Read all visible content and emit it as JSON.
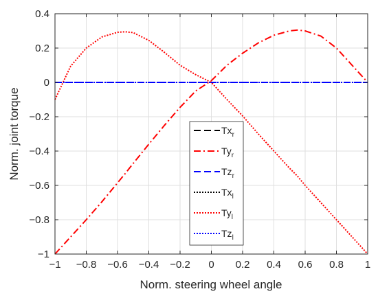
{
  "chart_data": {
    "type": "line",
    "title": "",
    "xlabel": "Norm. steering wheel angle",
    "ylabel": "Norm. joint torque",
    "xlim": [
      -1,
      1
    ],
    "ylim": [
      -1,
      0.4
    ],
    "xticks": [
      "-1",
      "-0.8",
      "-0.6",
      "-0.4",
      "-0.2",
      "0",
      "0.2",
      "0.4",
      "0.6",
      "0.8",
      "1"
    ],
    "yticks": [
      "0.4",
      "0.2",
      "0",
      "-0.2",
      "-0.4",
      "-0.6",
      "-0.8",
      "-1"
    ],
    "grid": true,
    "legend_position": "center-bottom",
    "x": [
      -1,
      -0.9,
      -0.8,
      -0.7,
      -0.6,
      -0.55,
      -0.5,
      -0.4,
      -0.3,
      -0.2,
      -0.1,
      0,
      0.1,
      0.2,
      0.3,
      0.4,
      0.5,
      0.55,
      0.6,
      0.7,
      0.8,
      0.9,
      1
    ],
    "series": [
      {
        "name": "Tx",
        "subscript": "r",
        "color": "#000000",
        "style": "dashed",
        "values": [
          0,
          0,
          0,
          0,
          0,
          0,
          0,
          0,
          0,
          0,
          0,
          0,
          0,
          0,
          0,
          0,
          0,
          0,
          0,
          0,
          0,
          0,
          0
        ]
      },
      {
        "name": "Ty",
        "subscript": "r",
        "color": "#ff0000",
        "style": "dashdot",
        "values": [
          -1.0,
          -0.9,
          -0.8,
          -0.695,
          -0.585,
          -0.53,
          -0.472,
          -0.36,
          -0.25,
          -0.145,
          -0.05,
          0.01,
          0.1,
          0.17,
          0.23,
          0.275,
          0.3,
          0.305,
          0.3,
          0.27,
          0.2,
          0.1,
          0
        ]
      },
      {
        "name": "Tz",
        "subscript": "r",
        "color": "#0000ff",
        "style": "dashed",
        "values": [
          0,
          0,
          0,
          0,
          0,
          0,
          0,
          0,
          0,
          0,
          0,
          0,
          0,
          0,
          0,
          0,
          0,
          0,
          0,
          0,
          0,
          0,
          0
        ]
      },
      {
        "name": "Tx",
        "subscript": "l",
        "color": "#000000",
        "style": "dotted",
        "values": [
          0,
          0,
          0,
          0,
          0,
          0,
          0,
          0,
          0,
          0,
          0,
          0,
          0,
          0,
          0,
          0,
          0,
          0,
          0,
          0,
          0,
          0,
          0
        ]
      },
      {
        "name": "Ty",
        "subscript": "l",
        "color": "#ff0000",
        "style": "dotted",
        "values": [
          -0.1,
          0.095,
          0.2,
          0.265,
          0.292,
          0.295,
          0.29,
          0.245,
          0.175,
          0.1,
          0.045,
          0.0,
          -0.1,
          -0.195,
          -0.3,
          -0.4,
          -0.5,
          -0.545,
          -0.6,
          -0.7,
          -0.8,
          -0.9,
          -1.0
        ]
      },
      {
        "name": "Tz",
        "subscript": "l",
        "color": "#0000ff",
        "style": "dotted",
        "values": [
          0,
          0,
          0,
          0,
          0,
          0,
          0,
          0,
          0,
          0,
          0,
          0,
          0,
          0,
          0,
          0,
          0,
          0,
          0,
          0,
          0,
          0,
          0
        ]
      }
    ]
  }
}
